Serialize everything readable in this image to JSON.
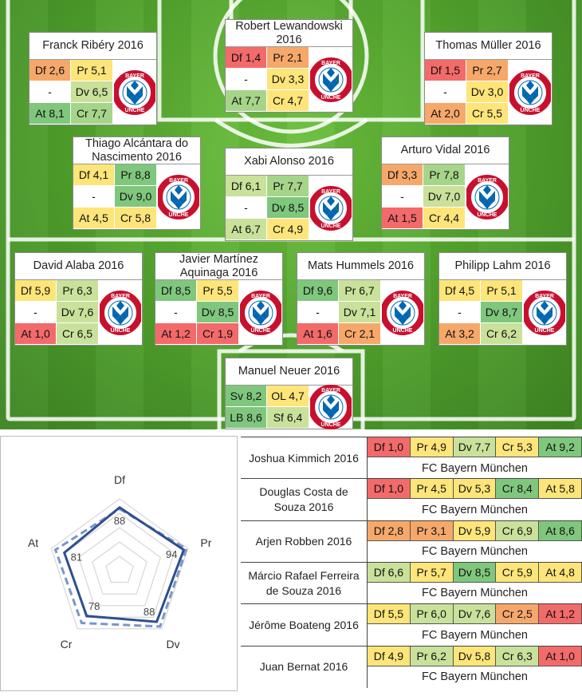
{
  "colors": {
    "red": "#f36a6a",
    "orange": "#f6a86a",
    "yellow": "#fde57a",
    "lightgreen": "#c9e19a",
    "midgreen": "#a6d58a",
    "green": "#7fc77d",
    "radar_line": "#2e4f8f",
    "radar_dash": "#7a96c8"
  },
  "pitch_players": [
    {
      "name": "Franck Ribéry 2016",
      "cells": [
        {
          "t": "Df 2,6",
          "c": "org"
        },
        {
          "t": "Pr 5,1",
          "c": "yel"
        },
        {
          "t": "-",
          "c": "none"
        },
        {
          "t": "Dv 6,5",
          "c": "lgr"
        },
        {
          "t": "At 8,1",
          "c": "gr"
        },
        {
          "t": "Cr 7,7",
          "c": "mgr"
        }
      ]
    },
    {
      "name": "Robert Lewandowski 2016",
      "cells": [
        {
          "t": "Df 1,4",
          "c": "red"
        },
        {
          "t": "Pr 2,1",
          "c": "org"
        },
        {
          "t": "-",
          "c": "none"
        },
        {
          "t": "Dv 3,3",
          "c": "yel"
        },
        {
          "t": "At 7,7",
          "c": "mgr"
        },
        {
          "t": "Cr 4,7",
          "c": "yel"
        }
      ]
    },
    {
      "name": "Thomas Müller 2016",
      "cells": [
        {
          "t": "Df 1,5",
          "c": "red"
        },
        {
          "t": "Pr 2,7",
          "c": "org"
        },
        {
          "t": "-",
          "c": "none"
        },
        {
          "t": "Dv 3,0",
          "c": "yel"
        },
        {
          "t": "At 2,0",
          "c": "org"
        },
        {
          "t": "Cr 5,5",
          "c": "yel"
        }
      ]
    },
    {
      "name": "Thiago Alcántara do Nascimento 2016",
      "cells": [
        {
          "t": "Df 4,1",
          "c": "yel"
        },
        {
          "t": "Pr 8,8",
          "c": "gr"
        },
        {
          "t": "-",
          "c": "none"
        },
        {
          "t": "Dv 9,0",
          "c": "gr"
        },
        {
          "t": "At 4,5",
          "c": "yel"
        },
        {
          "t": "Cr 5,8",
          "c": "yel"
        }
      ]
    },
    {
      "name": "Xabi Alonso 2016",
      "cells": [
        {
          "t": "Df 6,1",
          "c": "lgr"
        },
        {
          "t": "Pr 7,7",
          "c": "mgr"
        },
        {
          "t": "-",
          "c": "none"
        },
        {
          "t": "Dv 8,5",
          "c": "gr"
        },
        {
          "t": "At 6,7",
          "c": "lgr"
        },
        {
          "t": "Cr 4,9",
          "c": "yel"
        }
      ]
    },
    {
      "name": "Arturo Vidal 2016",
      "cells": [
        {
          "t": "Df 3,3",
          "c": "org"
        },
        {
          "t": "Pr 7,8",
          "c": "mgr"
        },
        {
          "t": "-",
          "c": "none"
        },
        {
          "t": "Dv 7,0",
          "c": "lgr"
        },
        {
          "t": "At 1,5",
          "c": "red"
        },
        {
          "t": "Cr 4,4",
          "c": "yel"
        }
      ]
    },
    {
      "name": "David Alaba 2016",
      "cells": [
        {
          "t": "Df 5,9",
          "c": "yel"
        },
        {
          "t": "Pr 6,3",
          "c": "lgr"
        },
        {
          "t": "-",
          "c": "none"
        },
        {
          "t": "Dv 7,6",
          "c": "lgr"
        },
        {
          "t": "At 1,0",
          "c": "red"
        },
        {
          "t": "Cr 6,5",
          "c": "lgr"
        }
      ]
    },
    {
      "name": "Javier Martínez Aquinaga 2016",
      "cells": [
        {
          "t": "Df 8,5",
          "c": "gr"
        },
        {
          "t": "Pr 5,5",
          "c": "yel"
        },
        {
          "t": "-",
          "c": "none"
        },
        {
          "t": "Dv 8,5",
          "c": "gr"
        },
        {
          "t": "At 1,2",
          "c": "red"
        },
        {
          "t": "Cr 1,9",
          "c": "red"
        }
      ]
    },
    {
      "name": "Mats Hummels 2016",
      "cells": [
        {
          "t": "Df 9,6",
          "c": "gr"
        },
        {
          "t": "Pr 6,7",
          "c": "lgr"
        },
        {
          "t": "-",
          "c": "none"
        },
        {
          "t": "Dv 7,1",
          "c": "lgr"
        },
        {
          "t": "At 1,6",
          "c": "red"
        },
        {
          "t": "Cr 2,1",
          "c": "org"
        }
      ]
    },
    {
      "name": "Philipp Lahm 2016",
      "cells": [
        {
          "t": "Df 4,5",
          "c": "yel"
        },
        {
          "t": "Pr 5,1",
          "c": "yel"
        },
        {
          "t": "-",
          "c": "none"
        },
        {
          "t": "Dv 8,7",
          "c": "gr"
        },
        {
          "t": "At 3,2",
          "c": "org"
        },
        {
          "t": "Cr 6,2",
          "c": "lgr"
        }
      ]
    },
    {
      "name": "Manuel Neuer 2016",
      "cells": [
        {
          "t": "Sv 8,2",
          "c": "gr"
        },
        {
          "t": "OL 4,7",
          "c": "yel"
        },
        {
          "t": "LB 8,6",
          "c": "gr"
        },
        {
          "t": "Sf 6,4",
          "c": "lgr"
        }
      ]
    }
  ],
  "logo": {
    "text": "BAYERN MÜNCHEN",
    "top": "BAYER",
    "bottom": "ÜNCHE"
  },
  "radar": {
    "axes": [
      "Df",
      "Pr",
      "Dv",
      "Cr",
      "At"
    ],
    "values": [
      88,
      94,
      88,
      78,
      81
    ],
    "dashed": [
      86,
      98,
      96,
      90,
      94
    ],
    "max": 100
  },
  "bench": [
    {
      "name": "Joshua Kimmich 2016",
      "cells": [
        {
          "t": "Df 1,0",
          "c": "red"
        },
        {
          "t": "Pr 4,9",
          "c": "yel"
        },
        {
          "t": "Dv 7,7",
          "c": "lgr"
        },
        {
          "t": "Cr 5,3",
          "c": "yel"
        },
        {
          "t": "At 9,2",
          "c": "gr"
        }
      ],
      "club": "FC Bayern München"
    },
    {
      "name": "Douglas Costa de Souza 2016",
      "cells": [
        {
          "t": "Df 1,0",
          "c": "red"
        },
        {
          "t": "Pr 4,5",
          "c": "yel"
        },
        {
          "t": "Dv 5,3",
          "c": "yel"
        },
        {
          "t": "Cr 8,4",
          "c": "gr"
        },
        {
          "t": "At 5,8",
          "c": "yel"
        }
      ],
      "club": "FC Bayern München"
    },
    {
      "name": "Arjen Robben 2016",
      "cells": [
        {
          "t": "Df 2,8",
          "c": "org"
        },
        {
          "t": "Pr 3,1",
          "c": "org"
        },
        {
          "t": "Dv 5,9",
          "c": "yel"
        },
        {
          "t": "Cr 6,9",
          "c": "lgr"
        },
        {
          "t": "At 8,6",
          "c": "gr"
        }
      ],
      "club": "FC Bayern München"
    },
    {
      "name": "Márcio Rafael Ferreira de Souza 2016",
      "cells": [
        {
          "t": "Df 6,6",
          "c": "lgr"
        },
        {
          "t": "Pr 5,7",
          "c": "yel"
        },
        {
          "t": "Dv 8,5",
          "c": "gr"
        },
        {
          "t": "Cr 5,9",
          "c": "yel"
        },
        {
          "t": "At 4,8",
          "c": "yel"
        }
      ],
      "club": "FC Bayern München"
    },
    {
      "name": "Jérôme Boateng 2016",
      "cells": [
        {
          "t": "Df 5,5",
          "c": "yel"
        },
        {
          "t": "Pr 6,0",
          "c": "lgr"
        },
        {
          "t": "Dv 7,6",
          "c": "lgr"
        },
        {
          "t": "Cr 2,5",
          "c": "org"
        },
        {
          "t": "At 1,2",
          "c": "red"
        }
      ],
      "club": "FC Bayern München"
    },
    {
      "name": "Juan Bernat 2016",
      "cells": [
        {
          "t": "Df 4,9",
          "c": "yel"
        },
        {
          "t": "Pr 6,2",
          "c": "lgr"
        },
        {
          "t": "Dv 5,8",
          "c": "yel"
        },
        {
          "t": "Cr 6,3",
          "c": "lgr"
        },
        {
          "t": "At 1,0",
          "c": "red"
        }
      ],
      "club": "FC Bayern München"
    }
  ]
}
